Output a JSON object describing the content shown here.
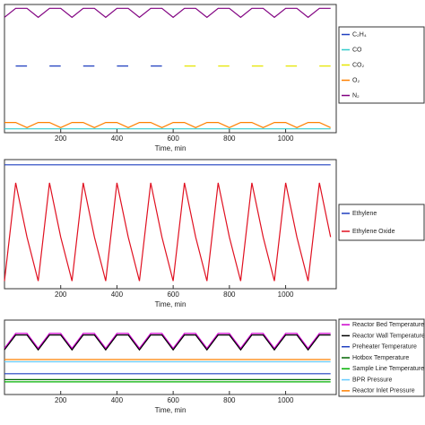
{
  "chart_data": [
    {
      "type": "line",
      "xlabel": "Time, min",
      "x": [
        0,
        40,
        80,
        120,
        160,
        200,
        240,
        280,
        320,
        360,
        400,
        440,
        480,
        520,
        560,
        600,
        640,
        680,
        720,
        760,
        800,
        840,
        880,
        920,
        960,
        1000,
        1040,
        1080,
        1120,
        1160
      ],
      "xlim": [
        0,
        1180
      ],
      "xticks": [
        200,
        400,
        600,
        800,
        1000
      ],
      "ylim": [
        0,
        100
      ],
      "series": [
        {
          "name": "C₂H₄",
          "color": "#1f3fbf",
          "values": [
            null,
            52,
            52,
            null,
            52,
            52,
            null,
            52,
            52,
            null,
            52,
            52,
            null,
            52,
            52,
            null,
            null,
            null,
            null,
            null,
            null,
            null,
            null,
            null,
            null,
            null,
            null,
            null,
            null,
            null
          ]
        },
        {
          "name": "CO",
          "color": "#33cccc",
          "values": [
            3,
            3,
            3,
            3,
            3,
            3,
            3,
            3,
            3,
            3,
            3,
            3,
            3,
            3,
            3,
            3,
            3,
            3,
            3,
            3,
            3,
            3,
            3,
            3,
            3,
            3,
            3,
            3,
            3,
            3
          ]
        },
        {
          "name": "CO₂",
          "color": "#e6e600",
          "values": [
            null,
            null,
            null,
            null,
            null,
            null,
            null,
            null,
            null,
            null,
            null,
            null,
            null,
            null,
            null,
            null,
            52,
            52,
            null,
            52,
            52,
            null,
            52,
            52,
            null,
            52,
            52,
            null,
            52,
            52
          ]
        },
        {
          "name": "O₂",
          "color": "#ff8000",
          "values": [
            8,
            8,
            4,
            8,
            8,
            4,
            8,
            8,
            4,
            8,
            8,
            4,
            8,
            8,
            4,
            8,
            8,
            4,
            8,
            8,
            4,
            8,
            8,
            4,
            8,
            8,
            4,
            8,
            8,
            4
          ]
        },
        {
          "name": "N₂",
          "color": "#800080",
          "values": [
            90,
            97,
            97,
            90,
            97,
            97,
            90,
            97,
            97,
            90,
            97,
            97,
            90,
            97,
            97,
            90,
            97,
            97,
            90,
            97,
            97,
            90,
            97,
            97,
            90,
            97,
            97,
            90,
            97,
            97
          ]
        }
      ]
    },
    {
      "type": "line",
      "xlabel": "Time, min",
      "x": [
        0,
        40,
        80,
        120,
        160,
        200,
        240,
        280,
        320,
        360,
        400,
        440,
        480,
        520,
        560,
        600,
        640,
        680,
        720,
        760,
        800,
        840,
        880,
        920,
        960,
        1000,
        1040,
        1080,
        1120,
        1160
      ],
      "xlim": [
        0,
        1180
      ],
      "xticks": [
        200,
        400,
        600,
        800,
        1000
      ],
      "ylim": [
        0,
        100
      ],
      "series": [
        {
          "name": "Ethylene",
          "color": "#1f3fbf",
          "values": [
            96,
            96,
            96,
            96,
            96,
            96,
            96,
            96,
            96,
            96,
            96,
            96,
            96,
            96,
            96,
            96,
            96,
            96,
            96,
            96,
            96,
            96,
            96,
            96,
            96,
            96,
            96,
            96,
            96,
            96
          ]
        },
        {
          "name": "Ethylene Oxide",
          "color": "#e01020",
          "values": [
            6,
            82,
            40,
            6,
            82,
            40,
            6,
            82,
            40,
            6,
            82,
            40,
            6,
            82,
            40,
            6,
            82,
            40,
            6,
            82,
            40,
            6,
            82,
            40,
            6,
            82,
            40,
            6,
            82,
            40
          ]
        }
      ]
    },
    {
      "type": "line",
      "xlabel": "Time, min",
      "x": [
        0,
        40,
        80,
        120,
        160,
        200,
        240,
        280,
        320,
        360,
        400,
        440,
        480,
        520,
        560,
        600,
        640,
        680,
        720,
        760,
        800,
        840,
        880,
        920,
        960,
        1000,
        1040,
        1080,
        1120,
        1160
      ],
      "xlim": [
        0,
        1180
      ],
      "xticks": [
        200,
        400,
        600,
        800,
        1000
      ],
      "ylim": [
        0,
        100
      ],
      "series": [
        {
          "name": "Reactor Bed Temperature",
          "color": "#cc00cc",
          "values": [
            62,
            82,
            82,
            62,
            82,
            82,
            62,
            82,
            82,
            62,
            82,
            82,
            62,
            82,
            82,
            62,
            82,
            82,
            62,
            82,
            82,
            62,
            82,
            82,
            62,
            82,
            82,
            62,
            82,
            82
          ]
        },
        {
          "name": "Reactor Wall Temperature",
          "color": "#000000",
          "values": [
            60,
            80,
            80,
            60,
            80,
            80,
            60,
            80,
            80,
            60,
            80,
            80,
            60,
            80,
            80,
            60,
            80,
            80,
            60,
            80,
            80,
            60,
            80,
            80,
            60,
            80,
            80,
            60,
            80,
            80
          ]
        },
        {
          "name": "Preheater Temperature",
          "color": "#1f3fbf",
          "values": [
            28,
            28,
            28,
            28,
            28,
            28,
            28,
            28,
            28,
            28,
            28,
            28,
            28,
            28,
            28,
            28,
            28,
            28,
            28,
            28,
            28,
            28,
            28,
            28,
            28,
            28,
            28,
            28,
            28,
            28
          ]
        },
        {
          "name": "Hotbox Temperature",
          "color": "#006400",
          "values": [
            20,
            20,
            20,
            20,
            20,
            20,
            20,
            20,
            20,
            20,
            20,
            20,
            20,
            20,
            20,
            20,
            20,
            20,
            20,
            20,
            20,
            20,
            20,
            20,
            20,
            20,
            20,
            20,
            20,
            20
          ]
        },
        {
          "name": "Sample Line Temperature",
          "color": "#00b000",
          "values": [
            17,
            17,
            17,
            17,
            17,
            17,
            17,
            17,
            17,
            17,
            17,
            17,
            17,
            17,
            17,
            17,
            17,
            17,
            17,
            17,
            17,
            17,
            17,
            17,
            17,
            17,
            17,
            17,
            17,
            17
          ]
        },
        {
          "name": "BPR Pressure",
          "color": "#66ccff",
          "values": [
            44,
            44,
            44,
            44,
            44,
            44,
            44,
            44,
            44,
            44,
            44,
            44,
            44,
            44,
            44,
            44,
            44,
            44,
            44,
            44,
            44,
            44,
            44,
            44,
            44,
            44,
            44,
            44,
            44,
            44
          ]
        },
        {
          "name": "Reactor Inlet Pressure",
          "color": "#ff8000",
          "values": [
            47,
            47,
            47,
            47,
            47,
            47,
            47,
            47,
            47,
            47,
            47,
            47,
            47,
            47,
            47,
            47,
            47,
            47,
            47,
            47,
            47,
            47,
            47,
            47,
            47,
            47,
            47,
            47,
            47,
            47
          ]
        }
      ]
    }
  ]
}
